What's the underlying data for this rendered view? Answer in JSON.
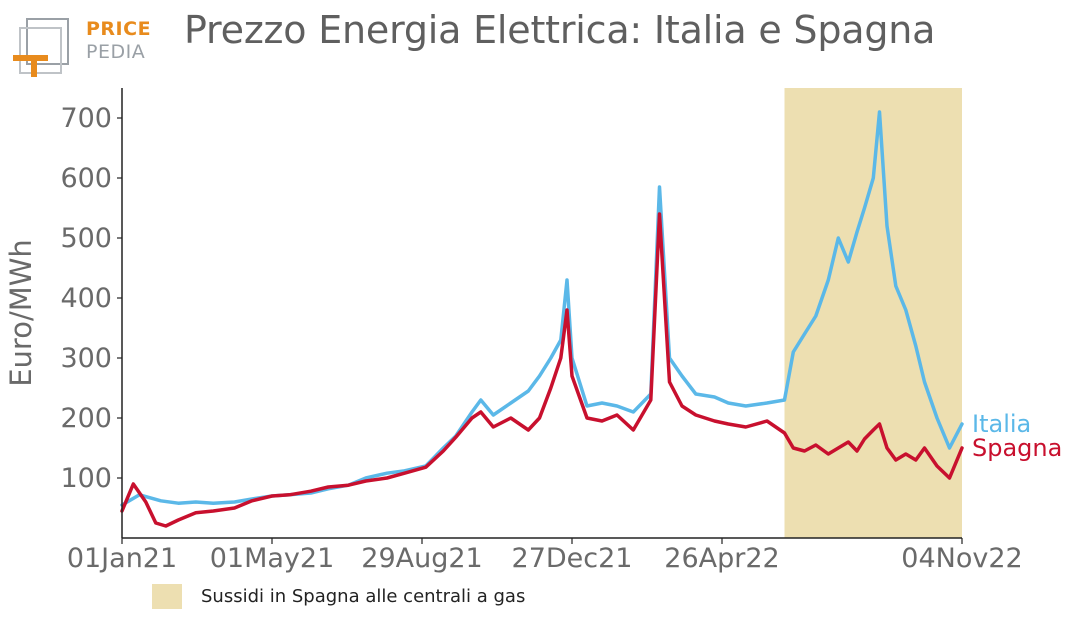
{
  "header": {
    "title": "Prezzo Energia Elettrica: Italia e Spagna"
  },
  "logo": {
    "line1": "PRICE",
    "line2": "PEDIA",
    "color_orange": "#e88b1d",
    "color_grey": "#9aa0a6"
  },
  "chart_data": {
    "type": "line",
    "title": "Prezzo Energia Elettrica: Italia e Spagna",
    "ylabel": "Euro/MWh",
    "xlabel": "",
    "ylim": [
      0,
      750
    ],
    "yticks": [
      100,
      200,
      300,
      400,
      500,
      600,
      700
    ],
    "xlim": [
      "2021-01-01",
      "2022-11-04"
    ],
    "xticks": [
      "2021-01-01",
      "2021-05-01",
      "2021-08-29",
      "2021-12-27",
      "2022-04-26",
      "2022-11-04"
    ],
    "xtick_labels": [
      "01Jan21",
      "01May21",
      "29Aug21",
      "27Dec21",
      "26Apr22",
      "04Nov22"
    ],
    "shaded_region": {
      "from": "2022-06-15",
      "to": "2022-11-04",
      "color": "#eddfb1",
      "label": "Sussidi in Spagna alle centrali a gas"
    },
    "series": [
      {
        "name": "Italia",
        "color": "#5bb8e8",
        "points": [
          [
            "2021-01-01",
            55
          ],
          [
            "2021-01-15",
            72
          ],
          [
            "2021-02-01",
            62
          ],
          [
            "2021-02-15",
            58
          ],
          [
            "2021-03-01",
            60
          ],
          [
            "2021-03-15",
            58
          ],
          [
            "2021-04-01",
            60
          ],
          [
            "2021-04-15",
            65
          ],
          [
            "2021-05-01",
            70
          ],
          [
            "2021-05-15",
            72
          ],
          [
            "2021-06-01",
            75
          ],
          [
            "2021-06-15",
            82
          ],
          [
            "2021-07-01",
            88
          ],
          [
            "2021-07-15",
            100
          ],
          [
            "2021-08-01",
            108
          ],
          [
            "2021-08-15",
            112
          ],
          [
            "2021-09-01",
            120
          ],
          [
            "2021-09-15",
            150
          ],
          [
            "2021-09-25",
            170
          ],
          [
            "2021-10-08",
            210
          ],
          [
            "2021-10-15",
            230
          ],
          [
            "2021-10-25",
            205
          ],
          [
            "2021-11-08",
            225
          ],
          [
            "2021-11-22",
            245
          ],
          [
            "2021-12-01",
            270
          ],
          [
            "2021-12-10",
            300
          ],
          [
            "2021-12-18",
            330
          ],
          [
            "2021-12-23",
            430
          ],
          [
            "2021-12-27",
            300
          ],
          [
            "2022-01-08",
            220
          ],
          [
            "2022-01-20",
            225
          ],
          [
            "2022-02-01",
            220
          ],
          [
            "2022-02-14",
            210
          ],
          [
            "2022-02-28",
            240
          ],
          [
            "2022-03-07",
            585
          ],
          [
            "2022-03-15",
            300
          ],
          [
            "2022-03-25",
            270
          ],
          [
            "2022-04-05",
            240
          ],
          [
            "2022-04-20",
            235
          ],
          [
            "2022-05-01",
            225
          ],
          [
            "2022-05-15",
            220
          ],
          [
            "2022-06-01",
            225
          ],
          [
            "2022-06-15",
            230
          ],
          [
            "2022-06-22",
            310
          ],
          [
            "2022-07-01",
            340
          ],
          [
            "2022-07-10",
            370
          ],
          [
            "2022-07-20",
            430
          ],
          [
            "2022-07-28",
            500
          ],
          [
            "2022-08-05",
            460
          ],
          [
            "2022-08-12",
            510
          ],
          [
            "2022-08-18",
            550
          ],
          [
            "2022-08-25",
            600
          ],
          [
            "2022-08-30",
            710
          ],
          [
            "2022-09-05",
            520
          ],
          [
            "2022-09-12",
            420
          ],
          [
            "2022-09-20",
            380
          ],
          [
            "2022-09-28",
            320
          ],
          [
            "2022-10-05",
            260
          ],
          [
            "2022-10-15",
            200
          ],
          [
            "2022-10-25",
            150
          ],
          [
            "2022-11-04",
            190
          ]
        ]
      },
      {
        "name": "Spagna",
        "color": "#c8102e",
        "points": [
          [
            "2021-01-01",
            45
          ],
          [
            "2021-01-10",
            90
          ],
          [
            "2021-01-20",
            60
          ],
          [
            "2021-01-28",
            25
          ],
          [
            "2021-02-05",
            20
          ],
          [
            "2021-02-15",
            30
          ],
          [
            "2021-03-01",
            42
          ],
          [
            "2021-03-15",
            45
          ],
          [
            "2021-04-01",
            50
          ],
          [
            "2021-04-15",
            62
          ],
          [
            "2021-05-01",
            70
          ],
          [
            "2021-05-15",
            72
          ],
          [
            "2021-06-01",
            78
          ],
          [
            "2021-06-15",
            85
          ],
          [
            "2021-07-01",
            88
          ],
          [
            "2021-07-15",
            95
          ],
          [
            "2021-08-01",
            100
          ],
          [
            "2021-08-15",
            108
          ],
          [
            "2021-09-01",
            118
          ],
          [
            "2021-09-15",
            145
          ],
          [
            "2021-09-25",
            168
          ],
          [
            "2021-10-08",
            200
          ],
          [
            "2021-10-15",
            210
          ],
          [
            "2021-10-25",
            185
          ],
          [
            "2021-11-08",
            200
          ],
          [
            "2021-11-22",
            180
          ],
          [
            "2021-12-01",
            200
          ],
          [
            "2021-12-10",
            250
          ],
          [
            "2021-12-18",
            300
          ],
          [
            "2021-12-23",
            380
          ],
          [
            "2021-12-27",
            270
          ],
          [
            "2022-01-08",
            200
          ],
          [
            "2022-01-20",
            195
          ],
          [
            "2022-02-01",
            205
          ],
          [
            "2022-02-14",
            180
          ],
          [
            "2022-02-28",
            230
          ],
          [
            "2022-03-07",
            540
          ],
          [
            "2022-03-15",
            260
          ],
          [
            "2022-03-25",
            220
          ],
          [
            "2022-04-05",
            205
          ],
          [
            "2022-04-20",
            195
          ],
          [
            "2022-05-01",
            190
          ],
          [
            "2022-05-15",
            185
          ],
          [
            "2022-06-01",
            195
          ],
          [
            "2022-06-15",
            175
          ],
          [
            "2022-06-22",
            150
          ],
          [
            "2022-07-01",
            145
          ],
          [
            "2022-07-10",
            155
          ],
          [
            "2022-07-20",
            140
          ],
          [
            "2022-07-28",
            150
          ],
          [
            "2022-08-05",
            160
          ],
          [
            "2022-08-12",
            145
          ],
          [
            "2022-08-18",
            165
          ],
          [
            "2022-08-25",
            180
          ],
          [
            "2022-08-30",
            190
          ],
          [
            "2022-09-05",
            150
          ],
          [
            "2022-09-12",
            130
          ],
          [
            "2022-09-20",
            140
          ],
          [
            "2022-09-28",
            130
          ],
          [
            "2022-10-05",
            150
          ],
          [
            "2022-10-15",
            120
          ],
          [
            "2022-10-25",
            100
          ],
          [
            "2022-11-04",
            150
          ]
        ]
      }
    ]
  },
  "legend": {
    "label": "Sussidi in Spagna alle centrali a gas",
    "color": "#eddfb1"
  }
}
